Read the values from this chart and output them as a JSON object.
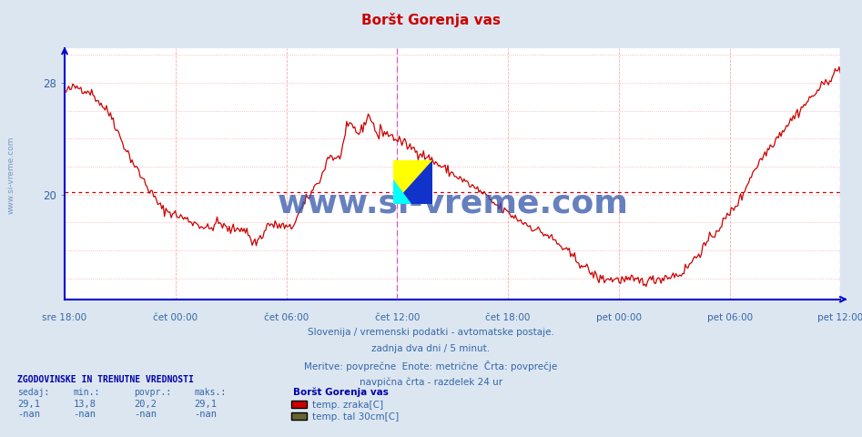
{
  "title": "Boršt Gorenja vas",
  "title_color": "#cc0000",
  "bg_color": "#dce6f0",
  "plot_bg_color": "#ffffff",
  "axis_color": "#0000cc",
  "tick_label_color": "#3366aa",
  "line_color_temp": "#cc0000",
  "avg_line_color": "#cc0000",
  "avg_line_value": 20.2,
  "vline_color": "#cc44cc",
  "yticks": [
    20,
    28
  ],
  "ymin": 12.5,
  "ymax": 30.5,
  "xlabels": [
    "sre 18:00",
    "čet 00:00",
    "čet 06:00",
    "čet 12:00",
    "čet 18:00",
    "pet 00:00",
    "pet 06:00",
    "pet 12:00"
  ],
  "n_points": 576,
  "subtitle_lines": [
    "Slovenija / vremenski podatki - avtomatske postaje.",
    "zadnja dva dni / 5 minut.",
    "Meritve: povprečne  Enote: metrične  Črta: povprečje",
    "navpična črta - razdelek 24 ur"
  ],
  "legend_title": "Boršt Gorenja vas",
  "legend_items": [
    {
      "label": "temp. zraka[C]",
      "color": "#cc0000"
    },
    {
      "label": "temp. tal 30cm[C]",
      "color": "#666633"
    }
  ],
  "stats_header": "ZGODOVINSKE IN TRENUTNE VREDNOSTI",
  "stats_cols": [
    "sedaj:",
    "min.:",
    "povpr.:",
    "maks.:"
  ],
  "stats_row1": [
    "29,1",
    "13,8",
    "20,2",
    "29,1"
  ],
  "stats_row2": [
    "-nan",
    "-nan",
    "-nan",
    "-nan"
  ],
  "watermark": "www.si-vreme.com",
  "watermark_color": "#3355aa",
  "sidebar_text": "www.si-vreme.com",
  "sidebar_color": "#6688bb",
  "grid_h_color": "#ddcccc",
  "grid_v_color": "#ddcccc",
  "vline_24h_color": "#cc44cc"
}
